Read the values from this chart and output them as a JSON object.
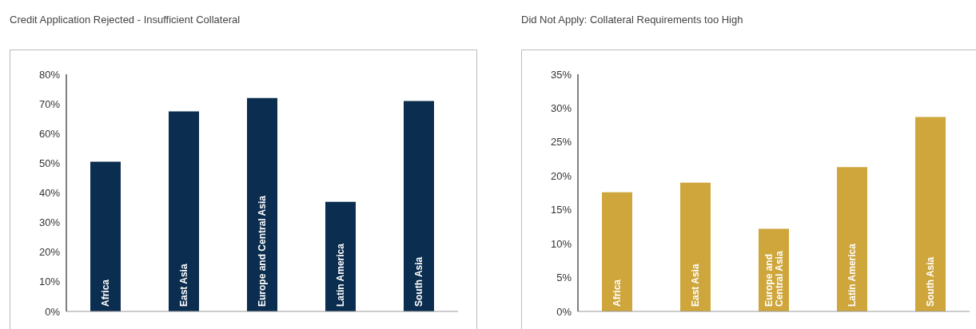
{
  "chart_data": [
    {
      "type": "bar",
      "title": "Credit Application Rejected - Insufficient Collateral",
      "categories": [
        "Africa",
        "East Asia",
        "Europe and Central Asia",
        "Latin America",
        "South Asia"
      ],
      "series": [
        {
          "color": "#0b2d4f",
          "values": [
            50.5,
            67.5,
            72,
            37,
            71
          ]
        }
      ],
      "ylim": [
        0,
        80
      ],
      "yticks": [
        {
          "value": 0,
          "label": "0%"
        },
        {
          "value": 10,
          "label": "10%"
        },
        {
          "value": 20,
          "label": "20%"
        },
        {
          "value": 30,
          "label": "30%"
        },
        {
          "value": 40,
          "label": "40%"
        },
        {
          "value": 50,
          "label": "50%"
        },
        {
          "value": 60,
          "label": "60%"
        },
        {
          "value": 70,
          "label": "70%"
        },
        {
          "value": 80,
          "label": "80%"
        }
      ],
      "grid": false
    },
    {
      "type": "bar",
      "title": "Did Not Apply: Collateral Requirements too High",
      "categories": [
        "Africa",
        "East Asia",
        "Europe and Central Asia",
        "Latin America",
        "South Asia"
      ],
      "series": [
        {
          "color": "#cfa63c",
          "values": [
            17.6,
            19,
            12.2,
            21.3,
            28.7
          ]
        }
      ],
      "ylim": [
        0,
        35
      ],
      "yticks": [
        {
          "value": 0,
          "label": "0%"
        },
        {
          "value": 5,
          "label": "5%"
        },
        {
          "value": 10,
          "label": "10%"
        },
        {
          "value": 15,
          "label": "15%"
        },
        {
          "value": 20,
          "label": "20%"
        },
        {
          "value": 25,
          "label": "25%"
        },
        {
          "value": 30,
          "label": "30%"
        },
        {
          "value": 35,
          "label": "35%"
        }
      ],
      "grid": false
    }
  ]
}
